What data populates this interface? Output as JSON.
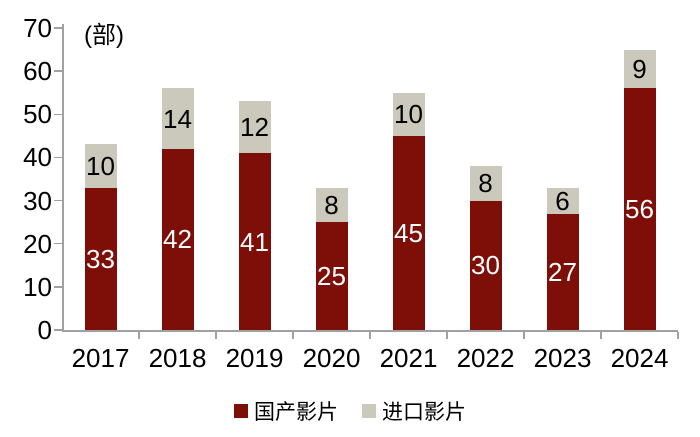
{
  "chart_data": {
    "type": "bar",
    "stacked": true,
    "unit_label": "(部)",
    "categories": [
      "2017",
      "2018",
      "2019",
      "2020",
      "2021",
      "2022",
      "2023",
      "2024"
    ],
    "series": [
      {
        "name": "国产影片",
        "color": "#7D0F08",
        "label_color": "#FFFFFF",
        "values": [
          33,
          42,
          41,
          25,
          45,
          30,
          27,
          56
        ]
      },
      {
        "name": "进口影片",
        "color": "#CBC9BB",
        "label_color": "#000000",
        "values": [
          10,
          14,
          12,
          8,
          10,
          8,
          6,
          9
        ]
      }
    ],
    "totals": [
      43,
      56,
      53,
      33,
      55,
      38,
      33,
      65
    ],
    "ylim": [
      0,
      70
    ],
    "yticks": [
      0,
      10,
      20,
      30,
      40,
      50,
      60,
      70
    ],
    "grid": false,
    "show_value_labels": true,
    "legend_position": "bottom",
    "axis_color": "#A0A0A0",
    "text_color": "#000000",
    "background_color": "#FFFFFF"
  }
}
